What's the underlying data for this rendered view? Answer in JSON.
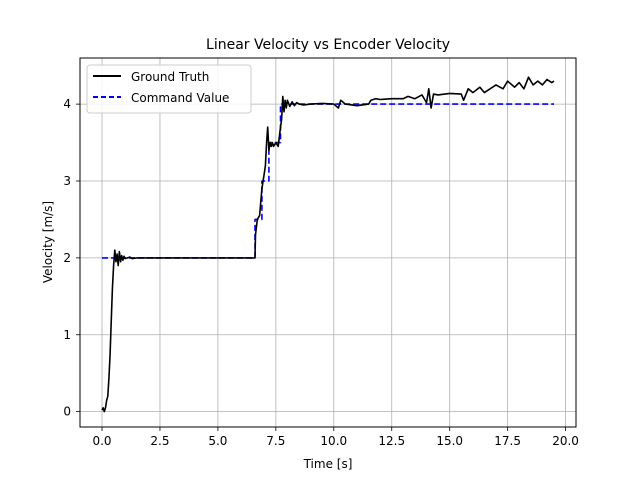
{
  "chart_data": {
    "type": "line",
    "title": "Linear Velocity vs Encoder Velocity",
    "xlabel": "Time [s]",
    "ylabel": "Velocity [m/s]",
    "xlim": [
      -0.95,
      20.45
    ],
    "ylim": [
      -0.2,
      4.6
    ],
    "xticks": [
      0.0,
      2.5,
      5.0,
      7.5,
      10.0,
      12.5,
      15.0,
      17.5,
      20.0
    ],
    "xtick_labels": [
      "0.0",
      "2.5",
      "5.0",
      "7.5",
      "10.0",
      "12.5",
      "15.0",
      "17.5",
      "20.0"
    ],
    "yticks": [
      0,
      1,
      2,
      3,
      4
    ],
    "ytick_labels": [
      "0",
      "1",
      "2",
      "3",
      "4"
    ],
    "grid": true,
    "legend_position": "top-left",
    "series": [
      {
        "name": "Ground Truth",
        "color": "#000000",
        "style": "solid",
        "x": [
          0.0,
          0.05,
          0.1,
          0.15,
          0.2,
          0.25,
          0.3,
          0.35,
          0.4,
          0.45,
          0.5,
          0.55,
          0.6,
          0.65,
          0.7,
          0.75,
          0.8,
          0.85,
          0.9,
          0.95,
          1.0,
          1.1,
          1.2,
          1.3,
          1.5,
          2.0,
          3.0,
          4.0,
          5.0,
          6.0,
          6.6,
          6.62,
          6.7,
          6.8,
          6.9,
          7.0,
          7.05,
          7.1,
          7.15,
          7.2,
          7.25,
          7.3,
          7.35,
          7.4,
          7.5,
          7.6,
          7.7,
          7.75,
          7.8,
          7.85,
          7.9,
          7.95,
          8.0,
          8.1,
          8.2,
          8.3,
          8.4,
          8.5,
          8.7,
          9.0,
          9.5,
          10.0,
          10.2,
          10.3,
          10.5,
          11.0,
          11.5,
          11.6,
          11.8,
          12.0,
          12.5,
          13.0,
          13.2,
          13.5,
          13.8,
          14.0,
          14.1,
          14.2,
          14.3,
          14.5,
          15.0,
          15.5,
          15.6,
          15.8,
          16.0,
          16.3,
          16.5,
          17.0,
          17.3,
          17.5,
          17.8,
          18.0,
          18.2,
          18.4,
          18.6,
          18.8,
          19.0,
          19.2,
          19.4,
          19.5
        ],
        "y": [
          0.02,
          0.05,
          0.0,
          0.05,
          0.15,
          0.2,
          0.45,
          0.75,
          1.2,
          1.6,
          1.9,
          2.1,
          1.95,
          2.05,
          1.9,
          2.08,
          1.95,
          2.03,
          1.97,
          2.02,
          1.99,
          2.0,
          2.01,
          1.99,
          2.0,
          2.0,
          2.0,
          2.0,
          2.0,
          2.0,
          2.0,
          2.3,
          2.5,
          2.55,
          2.9,
          3.1,
          3.2,
          3.5,
          3.7,
          3.4,
          3.5,
          3.45,
          3.5,
          3.45,
          3.5,
          3.45,
          3.7,
          3.8,
          4.1,
          3.9,
          4.05,
          3.95,
          4.05,
          3.97,
          4.03,
          3.98,
          4.02,
          4.0,
          3.99,
          4.0,
          4.01,
          4.0,
          3.95,
          4.05,
          4.0,
          3.98,
          4.0,
          4.05,
          4.07,
          4.06,
          4.07,
          4.07,
          4.1,
          4.07,
          4.12,
          4.02,
          4.2,
          3.95,
          4.13,
          4.12,
          4.14,
          4.13,
          4.05,
          4.2,
          4.15,
          4.22,
          4.15,
          4.25,
          4.2,
          4.3,
          4.22,
          4.28,
          4.2,
          4.35,
          4.25,
          4.3,
          4.25,
          4.32,
          4.28,
          4.3
        ]
      },
      {
        "name": "Command Value",
        "color": "#0000ff",
        "style": "dashed",
        "x": [
          0.0,
          6.6,
          6.6,
          6.9,
          6.9,
          7.2,
          7.2,
          7.7,
          7.7,
          19.5
        ],
        "y": [
          2.0,
          2.0,
          2.5,
          2.5,
          3.0,
          3.0,
          3.5,
          3.5,
          4.0,
          4.0
        ]
      }
    ]
  }
}
